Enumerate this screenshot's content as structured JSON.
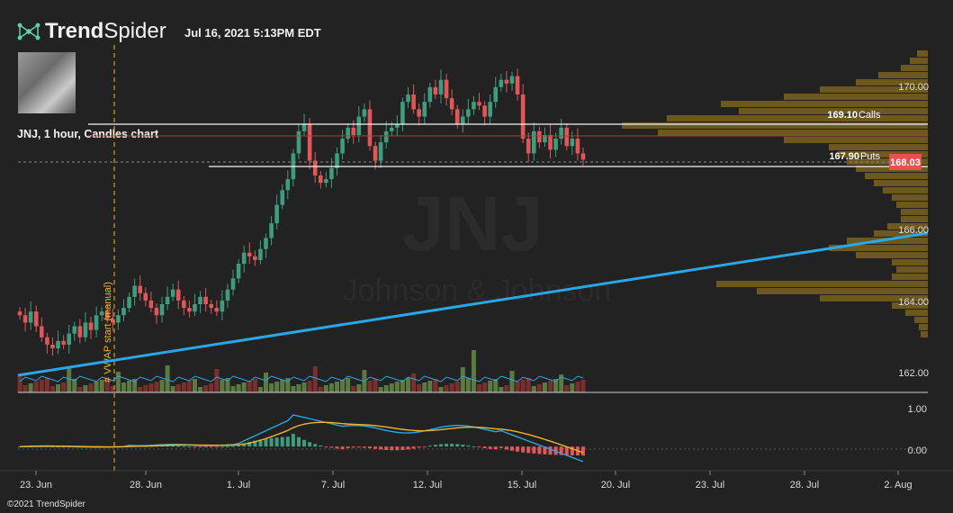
{
  "header": {
    "brand_bold": "Trend",
    "brand_light": "Spider",
    "timestamp": "Jul 16, 2021 5:13PM EDT",
    "symbol_line": "JNJ, 1 hour, Candles chart",
    "copyright": "©2021 TrendSpider"
  },
  "icons": {
    "logo": "trendspider-network-icon",
    "avatar": "user-avatar-photo"
  },
  "colors": {
    "background": "#222222",
    "up_candle": "#3d9d7e",
    "down_candle": "#e15759",
    "trendline": "#29a7e8",
    "volume_profile": "#7a6220",
    "vwap_line": "#f0b429",
    "macd_line": "#29a7e8",
    "signal_line": "#f0b429",
    "last_price_bg": "#e84f4f"
  },
  "chart_data": {
    "type": "candlestick",
    "symbol": "JNJ",
    "watermark": "JNJ",
    "watermark_sub": "Johnson & Johnson",
    "interval": "1 hour",
    "x_ticks": [
      "23. Jun",
      "28. Jun",
      "1. Jul",
      "7. Jul",
      "12. Jul",
      "15. Jul",
      "20. Jul",
      "23. Jul",
      "28. Jul",
      "2. Aug"
    ],
    "y_ticks": [
      "170.00",
      "166.00",
      "164.00",
      "162.00"
    ],
    "ylim": [
      161.8,
      171.0
    ],
    "last_price": "168.03",
    "levels": [
      {
        "price": "169.10",
        "label": "Calls"
      },
      {
        "price": "167.90",
        "label": "Puts"
      }
    ],
    "vwap_label": "# VWAP start (manual)",
    "trendline": {
      "start": {
        "x": "22. Jun",
        "price": 161.9
      },
      "end": {
        "x": "2. Aug",
        "price": 165.85
      }
    },
    "candles_approx": {
      "note": "hourly candles, 22 Jun - 16 Jul 2021",
      "closes": [
        163.8,
        163.6,
        163.9,
        163.5,
        163.2,
        163.0,
        162.9,
        163.1,
        163.0,
        163.3,
        163.5,
        163.2,
        163.6,
        163.4,
        163.8,
        163.9,
        163.7,
        163.6,
        163.8,
        164.0,
        164.3,
        164.6,
        164.4,
        164.2,
        164.0,
        163.8,
        164.1,
        164.3,
        164.5,
        164.2,
        164.0,
        163.9,
        164.1,
        164.3,
        164.1,
        164.0,
        163.9,
        164.2,
        164.5,
        164.8,
        165.2,
        165.5,
        165.4,
        165.3,
        165.6,
        165.9,
        166.3,
        166.8,
        167.2,
        167.5,
        168.2,
        168.8,
        169.0,
        168.0,
        167.6,
        167.4,
        167.5,
        167.8,
        168.2,
        168.6,
        168.9,
        168.7,
        169.2,
        169.4,
        168.4,
        168.0,
        168.5,
        168.8,
        168.9,
        169.0,
        169.6,
        169.8,
        169.4,
        169.2,
        169.6,
        170.0,
        169.8,
        170.2,
        169.7,
        169.4,
        169.0,
        169.2,
        169.4,
        169.6,
        169.5,
        169.2,
        169.6,
        170.0,
        170.2,
        170.1,
        170.3,
        169.8,
        168.6,
        168.2,
        168.8,
        168.5,
        168.7,
        168.3,
        168.6,
        168.9,
        168.4,
        168.6,
        168.2,
        168.03
      ]
    },
    "macd_y_ticks": [
      "1.00",
      "0.00"
    ],
    "macd_ylim": [
      -0.45,
      1.2
    ]
  }
}
